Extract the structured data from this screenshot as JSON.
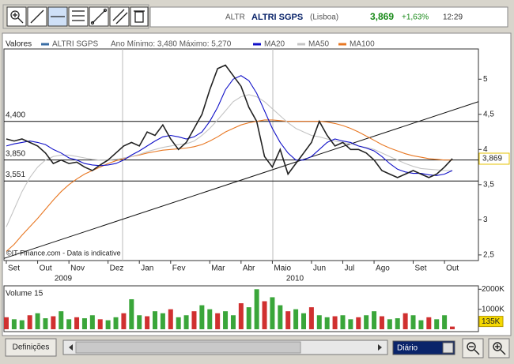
{
  "quote": {
    "symbol": "ALTR",
    "name": "ALTRI SGPS",
    "exchange": "(Lisboa)",
    "price": "3,869",
    "change": "+1,63%",
    "time": "12:29"
  },
  "chart_data": [
    {
      "type": "line",
      "legend_title": "Valores",
      "stats": "Ano Mínimo: 3,480 Máximo: 5,270",
      "categories": [
        "Set",
        null,
        null,
        null,
        "Out",
        null,
        null,
        null,
        "Nov",
        null,
        null,
        null,
        null,
        "Dez",
        null,
        null,
        null,
        "Jan",
        null,
        null,
        null,
        "Fev",
        null,
        null,
        null,
        null,
        "Mar",
        null,
        null,
        null,
        "Abr",
        null,
        null,
        null,
        "Maio",
        null,
        null,
        null,
        null,
        "Jun",
        null,
        null,
        null,
        "Jul",
        null,
        null,
        null,
        "Ago",
        null,
        null,
        null,
        null,
        "Set",
        null,
        null,
        null,
        "Out",
        null
      ],
      "year_labels": [
        "2009",
        "2010"
      ],
      "series": [
        {
          "name": "ALTRI SGPS",
          "color": "#222222",
          "values": [
            4.15,
            4.12,
            4.15,
            4.1,
            4.05,
            3.95,
            3.8,
            3.85,
            3.8,
            3.82,
            3.75,
            3.7,
            3.78,
            3.85,
            3.95,
            4.05,
            4.1,
            4.05,
            4.25,
            4.2,
            4.35,
            4.15,
            4.0,
            4.1,
            4.3,
            4.5,
            4.85,
            5.15,
            5.2,
            5.05,
            4.9,
            4.6,
            4.4,
            3.9,
            3.75,
            4.0,
            3.65,
            3.8,
            3.95,
            4.1,
            4.4,
            4.2,
            4.05,
            4.1,
            4.0,
            4.0,
            3.95,
            3.85,
            3.7,
            3.65,
            3.6,
            3.65,
            3.7,
            3.65,
            3.6,
            3.65,
            3.75,
            3.87
          ]
        },
        {
          "name": "MA20",
          "color": "#1010c8",
          "values": [
            4.05,
            4.08,
            4.1,
            4.12,
            4.1,
            4.07,
            4.0,
            3.95,
            3.88,
            3.85,
            3.8,
            3.78,
            3.77,
            3.78,
            3.8,
            3.85,
            3.92,
            3.98,
            4.05,
            4.12,
            4.18,
            4.2,
            4.18,
            4.15,
            4.18,
            4.25,
            4.4,
            4.6,
            4.85,
            5.0,
            5.05,
            4.98,
            4.8,
            4.55,
            4.3,
            4.1,
            3.95,
            3.85,
            3.85,
            3.9,
            4.0,
            4.1,
            4.15,
            4.12,
            4.1,
            4.05,
            4.02,
            3.98,
            3.9,
            3.8,
            3.72,
            3.68,
            3.66,
            3.66,
            3.64,
            3.63,
            3.65,
            3.7
          ]
        },
        {
          "name": "MA50",
          "color": "#c4c4c4",
          "values": [
            2.9,
            3.15,
            3.4,
            3.6,
            3.75,
            3.85,
            3.9,
            3.92,
            3.92,
            3.9,
            3.88,
            3.86,
            3.85,
            3.85,
            3.86,
            3.88,
            3.9,
            3.93,
            3.97,
            4.0,
            4.03,
            4.05,
            4.07,
            4.08,
            4.12,
            4.2,
            4.3,
            4.42,
            4.55,
            4.68,
            4.75,
            4.78,
            4.75,
            4.68,
            4.58,
            4.48,
            4.38,
            4.3,
            4.25,
            4.2,
            4.18,
            4.15,
            4.12,
            4.1,
            4.08,
            4.05,
            4.03,
            4.0,
            3.95,
            3.9,
            3.85,
            3.8,
            3.76,
            3.73,
            3.72,
            3.71,
            3.7,
            3.7
          ]
        },
        {
          "name": "MA100",
          "color": "#e87722",
          "values": [
            2.55,
            2.65,
            2.78,
            2.9,
            3.02,
            3.15,
            3.28,
            3.4,
            3.5,
            3.58,
            3.65,
            3.7,
            3.75,
            3.8,
            3.84,
            3.87,
            3.9,
            3.92,
            3.95,
            3.97,
            3.99,
            4.0,
            4.01,
            4.02,
            4.04,
            4.07,
            4.12,
            4.18,
            4.25,
            4.3,
            4.35,
            4.38,
            4.4,
            4.42,
            4.42,
            4.41,
            4.4,
            4.4,
            4.4,
            4.4,
            4.4,
            4.39,
            4.37,
            4.34,
            4.3,
            4.25,
            4.19,
            4.13,
            4.07,
            4.02,
            3.98,
            3.94,
            3.91,
            3.89,
            3.87,
            3.86,
            3.85,
            3.85
          ]
        }
      ],
      "ylim": [
        2.42,
        5.43
      ],
      "yticks": [
        {
          "value": 2.5,
          "label": "2,5"
        },
        3,
        {
          "value": 3.5,
          "label": "3,5"
        },
        4,
        {
          "value": 4.5,
          "label": "4,5"
        },
        5
      ],
      "levels": [
        {
          "value": 4.4,
          "label": "4,400"
        },
        {
          "value": 3.85,
          "label": "3,850"
        },
        {
          "value": 3.551,
          "label": "3,551"
        }
      ],
      "trendline": [
        2.45,
        4.68
      ],
      "last_value": {
        "value": 3.869,
        "label": "3,869"
      },
      "note": "©IT-Finance.com - Data is indicative"
    },
    {
      "type": "bar",
      "title": "Volume 15",
      "color": "#3aa63a",
      "values": [
        600000,
        500000,
        450000,
        700000,
        800000,
        550000,
        650000,
        900000,
        500000,
        600000,
        550000,
        700000,
        500000,
        450000,
        600000,
        800000,
        1500000,
        700000,
        650000,
        900000,
        800000,
        1000000,
        600000,
        700000,
        900000,
        1200000,
        1000000,
        800000,
        900000,
        700000,
        1300000,
        1100000,
        2000000,
        1400000,
        1600000,
        1200000,
        900000,
        1000000,
        800000,
        1100000,
        700000,
        600000,
        650000,
        700000,
        500000,
        600000,
        700000,
        900000,
        650000,
        500000,
        550000,
        800000,
        700000,
        450000,
        600000,
        500000,
        700000,
        135000
      ],
      "ylim": [
        0,
        2170000
      ],
      "yticks": [
        {
          "value": 1000000,
          "label": "1000K"
        },
        {
          "value": 2000000,
          "label": "2000K"
        }
      ],
      "last_value": {
        "value": 135000,
        "label": "135K"
      }
    }
  ],
  "controls": {
    "settings_button": "Definições",
    "interval": "Diário"
  }
}
